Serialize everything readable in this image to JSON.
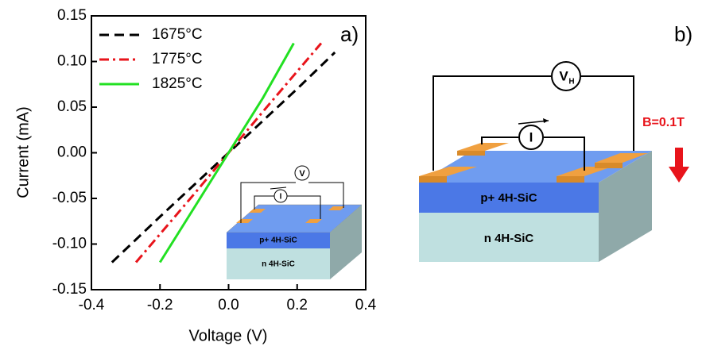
{
  "chart_data": {
    "type": "line",
    "xlabel": "Voltage (V)",
    "ylabel": "Current (mA)",
    "panel_label": "a)",
    "xlim": [
      -0.4,
      0.4
    ],
    "xticks": [
      -0.4,
      -0.2,
      {
        "value": 0,
        "label": "0.0"
      },
      0.2,
      0.4
    ],
    "ylim": [
      -0.15,
      0.15
    ],
    "yticks": [
      -0.15,
      {
        "value": -0.1,
        "label": "-0.10"
      },
      -0.05,
      {
        "value": 0,
        "label": "0.00"
      },
      0.05,
      {
        "value": 0.1,
        "label": "0.10"
      },
      0.15
    ],
    "legend": "upper left",
    "series": [
      {
        "name": "1675°C",
        "color": "#000000",
        "line_style": "dashed",
        "x": [
          -0.34,
          -0.2,
          -0.1,
          0,
          0.1,
          0.2,
          0.31
        ],
        "values": [
          -0.12,
          -0.07,
          -0.035,
          0,
          0.035,
          0.07,
          0.11
        ]
      },
      {
        "name": "1775°C",
        "color": "#e8141b",
        "line_style": "dashdot",
        "x": [
          -0.27,
          -0.1,
          0,
          0.1,
          0.27
        ],
        "values": [
          -0.12,
          -0.045,
          0,
          0.045,
          0.12
        ]
      },
      {
        "name": "1825°C",
        "color": "#22e022",
        "line_style": "solid",
        "x": [
          -0.2,
          -0.1,
          0,
          0.1,
          0.19
        ],
        "values": [
          -0.12,
          -0.06,
          0,
          0.06,
          0.12
        ]
      }
    ]
  },
  "inset": {
    "voltmeter": "V",
    "ammeter": "I",
    "p_layer": "p+ 4H-SiC",
    "n_layer": "n 4H-SiC"
  },
  "panel_b": {
    "label": "b)",
    "voltmeter": "V",
    "voltmeter_sub": "H",
    "ammeter": "I",
    "field": "B=0.1T",
    "p_layer": "p+ 4H-SiC",
    "n_layer": "n 4H-SiC"
  }
}
